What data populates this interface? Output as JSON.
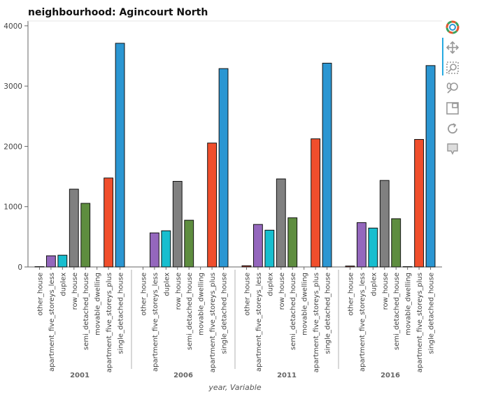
{
  "chart_data": {
    "type": "bar",
    "title": "neighbourhood: Agincourt North",
    "xlabel": "year, Variable",
    "ylabel": "",
    "ylim": [
      0,
      4080
    ],
    "yticks": [
      "0",
      "1000",
      "2000",
      "3000",
      "4000"
    ],
    "grid": false,
    "legend": "none",
    "groups": [
      "2001",
      "2006",
      "2011",
      "2016"
    ],
    "categories": [
      "other_house",
      "apartment_five_storeys_less",
      "duplex",
      "row_house",
      "semi_detached_house",
      "movable_dwelling",
      "apartment_five_storeys_plus",
      "single_detached_house"
    ],
    "category_colors": [
      "#c0392b",
      "#9467bd",
      "#17becf",
      "#808080",
      "#5e8d3f",
      "#4a4a4a",
      "#f04e2c",
      "#2b96d2"
    ],
    "series": [
      {
        "name": "2001",
        "values": [
          5,
          185,
          195,
          1290,
          1055,
          0,
          1475,
          3710
        ]
      },
      {
        "name": "2006",
        "values": [
          0,
          565,
          600,
          1420,
          775,
          0,
          2055,
          3290
        ]
      },
      {
        "name": "2011",
        "values": [
          20,
          705,
          610,
          1460,
          815,
          0,
          2125,
          3380
        ]
      },
      {
        "name": "2016",
        "values": [
          15,
          735,
          645,
          1435,
          800,
          5,
          2115,
          3340
        ]
      }
    ]
  },
  "toolbar": {
    "tools": [
      "bokeh-logo-icon",
      "pan-icon",
      "box-zoom-icon",
      "wheel-zoom-icon",
      "save-icon",
      "reset-icon",
      "hover-icon"
    ]
  }
}
